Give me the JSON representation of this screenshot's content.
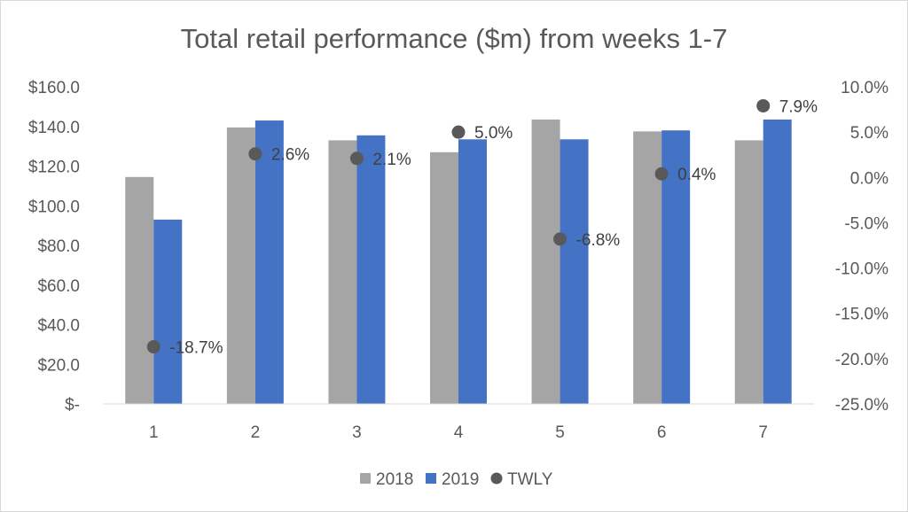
{
  "chart_data": {
    "type": "bar",
    "title": "Total retail performance ($m) from weeks 1-7",
    "categories": [
      "1",
      "2",
      "3",
      "4",
      "5",
      "6",
      "7"
    ],
    "series": [
      {
        "name": "2018",
        "kind": "bar",
        "axis": "left",
        "color": "#a5a5a5",
        "values": [
          114.5,
          139.5,
          133.0,
          127.0,
          143.5,
          137.5,
          133.0
        ]
      },
      {
        "name": "2019",
        "kind": "bar",
        "axis": "left",
        "color": "#4472c4",
        "values": [
          93.0,
          143.0,
          135.5,
          133.5,
          133.5,
          138.0,
          143.5
        ]
      },
      {
        "name": "TWLY",
        "kind": "scatter",
        "axis": "right",
        "color": "#595959",
        "values": [
          -18.7,
          2.6,
          2.1,
          5.0,
          -6.8,
          0.4,
          7.9
        ],
        "labels": [
          "-18.7%",
          "2.6%",
          "2.1%",
          "5.0%",
          "-6.8%",
          "0.4%",
          "7.9%"
        ]
      }
    ],
    "y_left": {
      "min": 0,
      "max": 160,
      "ticks": [
        0,
        20,
        40,
        60,
        80,
        100,
        120,
        140,
        160
      ],
      "tick_labels": [
        "$-",
        "$20.0",
        "$40.0",
        "$60.0",
        "$80.0",
        "$100.0",
        "$120.0",
        "$140.0",
        "$160.0"
      ]
    },
    "y_right": {
      "min": -25,
      "max": 10,
      "ticks": [
        -25,
        -20,
        -15,
        -10,
        -5,
        0,
        5,
        10
      ],
      "tick_labels": [
        "-25.0%",
        "-20.0%",
        "-15.0%",
        "-10.0%",
        "-5.0%",
        "0.0%",
        "5.0%",
        "10.0%"
      ]
    },
    "grid": false,
    "legend": "bottom"
  }
}
